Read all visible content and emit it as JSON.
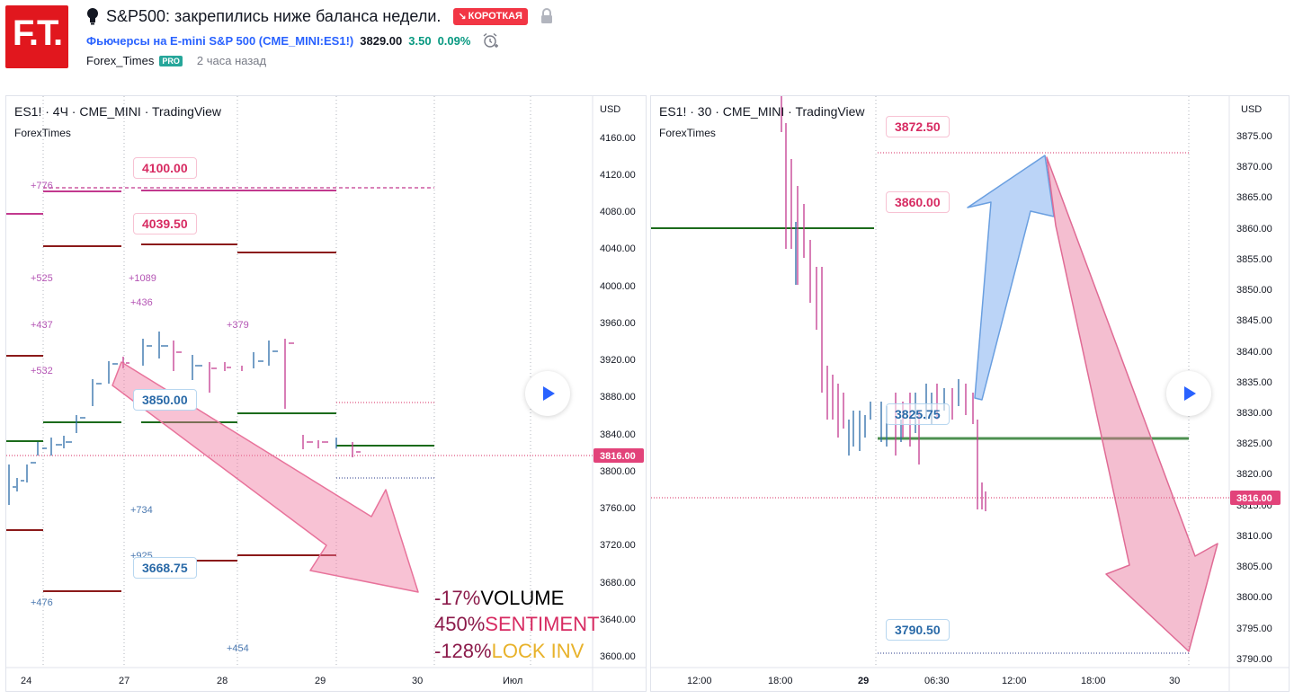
{
  "header": {
    "logo_text": "F.T.",
    "title": "S&P500: закрепились ниже баланса недели.",
    "badge": "КОРОТКАЯ",
    "symbol_link": "Фьючерсы на E-mini S&P 500 (CME_MINI:ES1!)",
    "price": "3829.00",
    "change": "3.50",
    "change_pct": "0.09%",
    "author": "Forex_Times",
    "author_badge": "PRO",
    "time_ago": "2 часа назад",
    "colors": {
      "short": "#f23645",
      "link": "#2962ff",
      "up": "#089981"
    }
  },
  "left_chart": {
    "legend": "ES1! · 4Ч · CME_MINI · TradingView",
    "legend_sub": "ForexTimes",
    "currency": "USD",
    "price_axis": [
      "4160.00",
      "4120.00",
      "4080.00",
      "4040.00",
      "4000.00",
      "3960.00",
      "3920.00",
      "3880.00",
      "3840.00",
      "3800.00",
      "3760.00",
      "3720.00",
      "3680.00",
      "3640.00",
      "3600.00"
    ],
    "current_price": "3816.00",
    "time_axis": [
      "24",
      "27",
      "28",
      "29",
      "30",
      "Июл"
    ],
    "callouts": [
      "4100.00",
      "4039.50",
      "3850.00",
      "3668.75"
    ],
    "volume_labels": [
      "+776",
      "+525",
      "+1089",
      "+436",
      "+437",
      "+379",
      "+532",
      "+734",
      "+925",
      "+476",
      "+454"
    ],
    "stats": [
      {
        "value": "-17%",
        "label": "VOLUME",
        "label_color": "#000000"
      },
      {
        "value": "450%",
        "label": "SENTIMENT",
        "label_color": "#d72b62"
      },
      {
        "value": "-128%",
        "label": "LOCK INV",
        "label_color": "#e8b22a"
      }
    ]
  },
  "right_chart": {
    "legend": "ES1! · 30 · CME_MINI · TradingView",
    "legend_sub": "ForexTimes",
    "currency": "USD",
    "price_axis": [
      "3875.00",
      "3870.00",
      "3865.00",
      "3860.00",
      "3855.00",
      "3850.00",
      "3845.00",
      "3840.00",
      "3835.00",
      "3830.00",
      "3825.00",
      "3820.00",
      "3815.00",
      "3810.00",
      "3805.00",
      "3800.00",
      "3795.00",
      "3790.00"
    ],
    "current_price": "3816.00",
    "time_axis": [
      "12:00",
      "18:00",
      "29",
      "06:30",
      "12:00",
      "18:00",
      "30"
    ],
    "callouts": [
      "3872.50",
      "3860.00",
      "3825.75",
      "3790.50"
    ]
  }
}
